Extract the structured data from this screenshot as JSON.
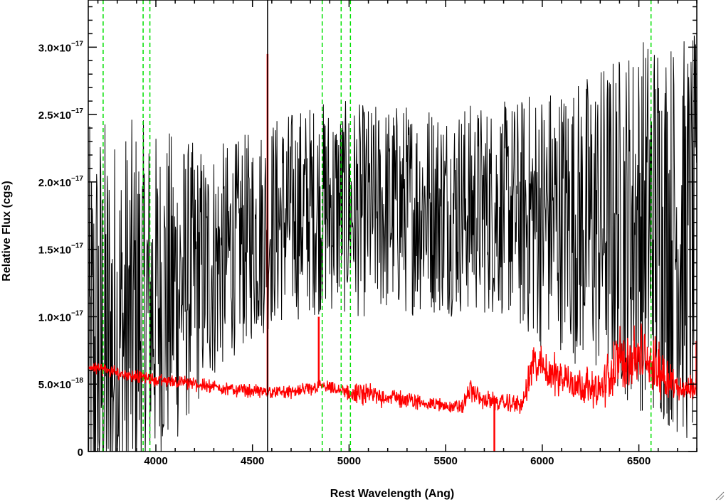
{
  "chart_data": {
    "type": "line",
    "xlabel": "Rest Wavelength (Ang)",
    "ylabel": "Relative Flux (cgs)",
    "xlim": [
      3650,
      6800
    ],
    "ylim": [
      0,
      3.35e-17
    ],
    "x_ticks": [
      4000,
      4500,
      5000,
      5500,
      6000,
      6500
    ],
    "x_tick_labels": [
      "4000",
      "4500",
      "5000",
      "5500",
      "6000",
      "6500"
    ],
    "y_ticks": [
      {
        "value": 0,
        "mantissa": "0",
        "exponent": ""
      },
      {
        "value": 5e-18,
        "mantissa": "5.0×10",
        "exponent": "−18"
      },
      {
        "value": 1e-17,
        "mantissa": "1.0×10",
        "exponent": "−17"
      },
      {
        "value": 1.5e-17,
        "mantissa": "1.5×10",
        "exponent": "−17"
      },
      {
        "value": 2e-17,
        "mantissa": "2.0×10",
        "exponent": "−17"
      },
      {
        "value": 2.5e-17,
        "mantissa": "2.5×10",
        "exponent": "−17"
      },
      {
        "value": 3e-17,
        "mantissa": "3.0×10",
        "exponent": "−17"
      }
    ],
    "grid": false,
    "series": [
      {
        "color": "#000000",
        "style": "noisy",
        "x": [
          3650,
          3700,
          3800,
          3900,
          4000,
          4100,
          4200,
          4300,
          4400,
          4500,
          4600,
          4700,
          4800,
          4900,
          5000,
          5100,
          5200,
          5300,
          5400,
          5500,
          5600,
          5700,
          5800,
          5900,
          6000,
          6100,
          6200,
          6300,
          6400,
          6500,
          6600,
          6700,
          6800
        ],
        "y": [
          4e-18,
          6e-18,
          8e-18,
          1e-17,
          1.1e-17,
          1.2e-17,
          1.3e-17,
          1.4e-17,
          1.5e-17,
          1.6e-17,
          1.7e-17,
          1.75e-17,
          1.8e-17,
          1.82e-17,
          1.8e-17,
          1.78e-17,
          1.8e-17,
          1.8e-17,
          1.82e-17,
          1.8e-17,
          1.8e-17,
          1.8e-17,
          1.8e-17,
          1.75e-17,
          1.75e-17,
          1.75e-17,
          1.7e-17,
          1.7e-17,
          1.7e-17,
          1.7e-17,
          1.7e-17,
          1.6e-17,
          1.5e-17
        ],
        "noise": [
          2e-17,
          2e-17,
          1.6e-17,
          1.5e-17,
          1.3e-17,
          1.2e-17,
          1e-17,
          9e-18,
          8e-18,
          8e-18,
          8e-18,
          8e-18,
          8e-18,
          8e-18,
          8e-18,
          8e-18,
          8e-18,
          8e-18,
          8e-18,
          8e-18,
          8e-18,
          8e-18,
          8e-18,
          9e-18,
          1e-17,
          1e-17,
          1.1e-17,
          1.2e-17,
          1.3e-17,
          1.4e-17,
          1.5e-17,
          1.5e-17,
          1.6e-17
        ]
      },
      {
        "color": "#ff0000",
        "style": "noisy",
        "x": [
          3650,
          3700,
          3800,
          3900,
          4000,
          4100,
          4200,
          4300,
          4400,
          4500,
          4600,
          4700,
          4800,
          4850,
          4900,
          5000,
          5100,
          5200,
          5300,
          5400,
          5500,
          5590,
          5620,
          5700,
          5800,
          5900,
          5950,
          6000,
          6100,
          6200,
          6300,
          6400,
          6500,
          6600,
          6700,
          6800
        ],
        "y": [
          6.3e-18,
          6.2e-18,
          5.8e-18,
          5.6e-18,
          5.3e-18,
          5.2e-18,
          5e-18,
          4.8e-18,
          4.6e-18,
          4.5e-18,
          4.4e-18,
          4.4e-18,
          4.6e-18,
          4.9e-18,
          4.7e-18,
          4.3e-18,
          4.2e-18,
          4.1e-18,
          3.8e-18,
          3.6e-18,
          3.4e-18,
          3.3e-18,
          4.6e-18,
          3.8e-18,
          3.6e-18,
          3.5e-18,
          6.5e-18,
          6.2e-18,
          5.5e-18,
          5e-18,
          4.5e-18,
          6.8e-18,
          7e-18,
          6.2e-18,
          4.8e-18,
          4.6e-18
        ],
        "noise": [
          6e-19,
          6e-19,
          6e-19,
          6e-19,
          6e-19,
          6e-19,
          6e-19,
          6e-19,
          6e-19,
          6e-19,
          6e-19,
          6e-19,
          6e-19,
          6e-19,
          6e-19,
          8e-19,
          1e-18,
          1e-18,
          8e-19,
          6e-19,
          6e-19,
          6e-19,
          1.2e-18,
          8e-19,
          8e-19,
          8e-19,
          2e-18,
          2e-18,
          1.8e-18,
          1.6e-18,
          1.6e-18,
          3e-18,
          3e-18,
          2.5e-18,
          1.2e-18,
          1.2e-18
        ]
      }
    ],
    "spikes": [
      {
        "series": 1,
        "x": 4578,
        "y": 2.95e-17
      },
      {
        "series": 1,
        "x": 4843,
        "y": 1e-17
      },
      {
        "series": 1,
        "x": 5752,
        "y": 0
      },
      {
        "series": 1,
        "x": 6798,
        "y": 8.2e-18
      },
      {
        "series": 0,
        "x": 4578,
        "y": 3.35e-17
      },
      {
        "series": 0,
        "x": 4578,
        "y": 0
      }
    ],
    "reference_lines": {
      "color": "#00e000",
      "style": "dashed",
      "x": [
        3727,
        3934,
        3969,
        4861,
        4959,
        5007,
        6563
      ]
    }
  },
  "icons": {
    "resize": "resize-grip-icon"
  }
}
